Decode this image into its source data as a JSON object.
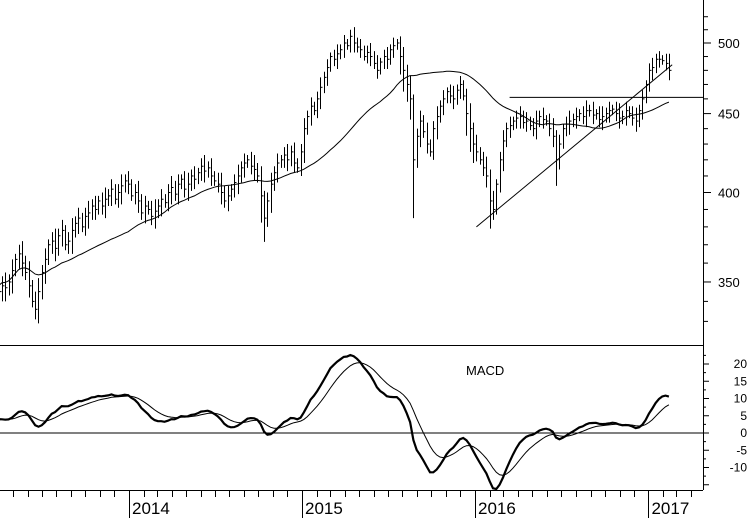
{
  "chart_data": [
    {
      "type": "ohlc",
      "interval": "weekly",
      "start_week": "2013-04-01",
      "y_scale": "log",
      "ylim": [
        318,
        525
      ],
      "y_ticks": [
        350,
        400,
        450,
        500
      ],
      "x_tick_labels": [
        "2014",
        "2015",
        "2016",
        "2017"
      ],
      "grid": false,
      "close": [
        345,
        348,
        347,
        350,
        356,
        362,
        365,
        360,
        355,
        348,
        340,
        336,
        345,
        355,
        362,
        370,
        372,
        368,
        375,
        378,
        370,
        372,
        378,
        382,
        385,
        380,
        386,
        388,
        392,
        390,
        395,
        392,
        396,
        398,
        402,
        396,
        400,
        404,
        407,
        405,
        398,
        400,
        395,
        388,
        392,
        390,
        386,
        389,
        392,
        396,
        394,
        400,
        403,
        399,
        405,
        408,
        402,
        405,
        410,
        408,
        412,
        416,
        413,
        415,
        410,
        407,
        405,
        400,
        395,
        398,
        402,
        406,
        410,
        415,
        418,
        420,
        416,
        414,
        410,
        398,
        385,
        395,
        405,
        412,
        418,
        420,
        423,
        420,
        425,
        418,
        415,
        425,
        440,
        448,
        455,
        452,
        460,
        468,
        475,
        482,
        490,
        488,
        492,
        495,
        500,
        498,
        505,
        500,
        497,
        495,
        490,
        493,
        490,
        485,
        480,
        486,
        490,
        488,
        495,
        498,
        500,
        490,
        480,
        470,
        460,
        420,
        435,
        445,
        438,
        430,
        425,
        440,
        448,
        455,
        460,
        465,
        462,
        460,
        466,
        470,
        462,
        450,
        440,
        430,
        425,
        420,
        415,
        410,
        395,
        390,
        405,
        420,
        432,
        440,
        442,
        445,
        447,
        448,
        444,
        445,
        442,
        440,
        445,
        448,
        446,
        445,
        440,
        435,
        420,
        430,
        440,
        443,
        445,
        446,
        448,
        450,
        448,
        452,
        452,
        449,
        450,
        446,
        448,
        450,
        452,
        453,
        450,
        447,
        448,
        452,
        450,
        447,
        445,
        452,
        460,
        470,
        480,
        482,
        488,
        488,
        487,
        485,
        480
      ],
      "overlays": [
        {
          "type": "moving_average",
          "period_weeks": 40
        }
      ],
      "annotations": [
        {
          "type": "horizontal_line",
          "price": 461,
          "from": "2016-03-14"
        },
        {
          "type": "trend_line",
          "from": [
            "2016-01-04",
            380
          ],
          "to": [
            "2017-02-20",
            484
          ]
        }
      ]
    },
    {
      "type": "line",
      "title": "MACD",
      "indicator": "MACD(12,26,9)",
      "ylim": [
        -17,
        25
      ],
      "y_ticks": [
        20,
        15,
        10,
        5,
        0,
        -5,
        -10
      ],
      "zero_line": true
    }
  ]
}
